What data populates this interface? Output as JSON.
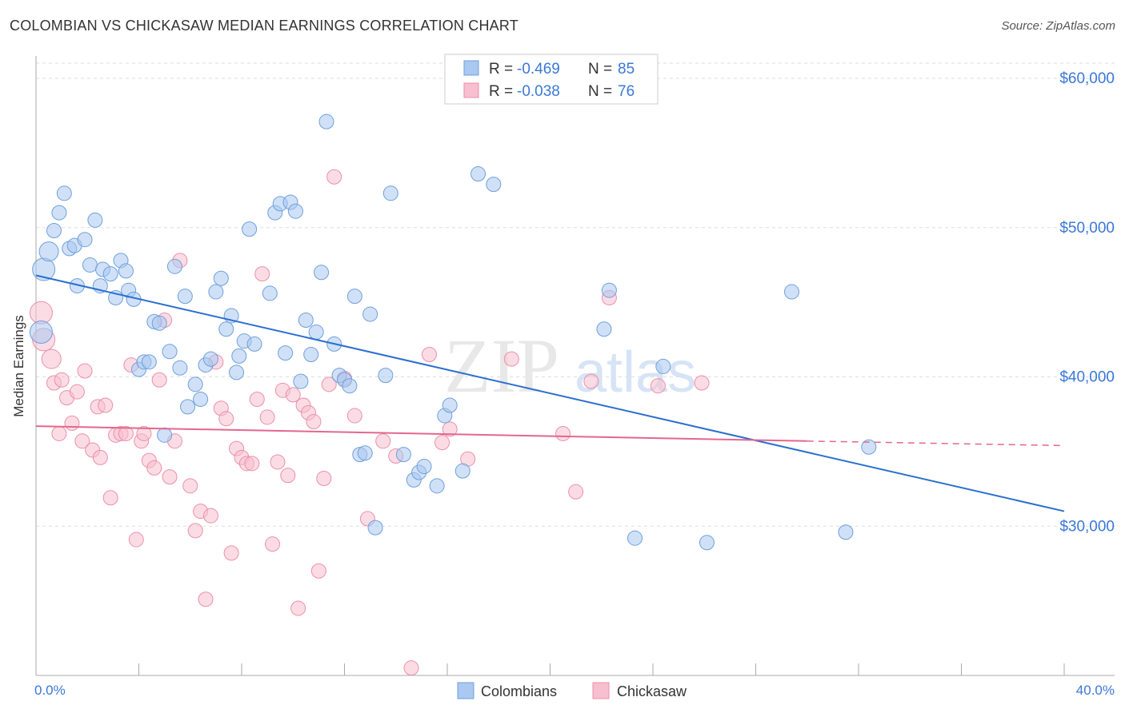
{
  "title": "COLOMBIAN VS CHICKASAW MEDIAN EARNINGS CORRELATION CHART",
  "source": "Source: ZipAtlas.com",
  "watermark": {
    "zip": "ZIP",
    "atlas": "atlas"
  },
  "legend_stats": [
    {
      "r_label": "R =",
      "r_value": "-0.469",
      "n_label": "N =",
      "n_value": "85"
    },
    {
      "r_label": "R =",
      "r_value": "-0.038",
      "n_label": "N =",
      "n_value": "76"
    }
  ],
  "colors": {
    "blue_fill": "#aac8f0",
    "blue_stroke": "#6f9fdc",
    "blue_line": "#2a6fd0",
    "pink_fill": "#f7bfd0",
    "pink_stroke": "#ec8fab",
    "pink_line": "#e4668f",
    "value_text": "#3a78d6",
    "grid": "#dddddd",
    "axis": "#aaaaaa"
  },
  "chart_data": {
    "type": "scatter",
    "title": "COLOMBIAN VS CHICKASAW MEDIAN EARNINGS CORRELATION CHART",
    "xlabel": "",
    "ylabel": "Median Earnings",
    "xlim": [
      0,
      40
    ],
    "ylim": [
      20000,
      61500
    ],
    "x_tick_labels": [
      "0.0%",
      "40.0%"
    ],
    "y_ticks": [
      30000,
      40000,
      50000,
      60000
    ],
    "y_tick_labels": [
      "$30,000",
      "$40,000",
      "$50,000",
      "$60,000"
    ],
    "grid": true,
    "legend_position": "bottom-center",
    "series": [
      {
        "name": "Colombians",
        "r": -0.469,
        "n": 85,
        "trend": {
          "x0": 0,
          "y0": 46800,
          "x1": 40,
          "y1": 31000
        },
        "points": [
          [
            0.2,
            43000
          ],
          [
            0.3,
            47200
          ],
          [
            0.5,
            48400
          ],
          [
            0.7,
            49800
          ],
          [
            0.9,
            51000
          ],
          [
            1.1,
            52300
          ],
          [
            1.3,
            48600
          ],
          [
            1.5,
            48800
          ],
          [
            1.6,
            46100
          ],
          [
            1.9,
            49200
          ],
          [
            2.1,
            47500
          ],
          [
            2.3,
            50500
          ],
          [
            2.5,
            46100
          ],
          [
            2.6,
            47200
          ],
          [
            2.9,
            46900
          ],
          [
            3.1,
            45300
          ],
          [
            3.3,
            47800
          ],
          [
            3.5,
            47100
          ],
          [
            3.6,
            45800
          ],
          [
            3.8,
            45200
          ],
          [
            4.0,
            40500
          ],
          [
            4.2,
            41000
          ],
          [
            4.4,
            41000
          ],
          [
            4.6,
            43700
          ],
          [
            4.8,
            43600
          ],
          [
            5.0,
            36100
          ],
          [
            5.2,
            41700
          ],
          [
            5.4,
            47400
          ],
          [
            5.6,
            40600
          ],
          [
            5.8,
            45400
          ],
          [
            5.9,
            38000
          ],
          [
            6.2,
            39500
          ],
          [
            6.4,
            38500
          ],
          [
            6.6,
            40800
          ],
          [
            6.8,
            41200
          ],
          [
            7.0,
            45700
          ],
          [
            7.2,
            46600
          ],
          [
            7.4,
            43200
          ],
          [
            7.6,
            44100
          ],
          [
            7.8,
            40300
          ],
          [
            7.9,
            41400
          ],
          [
            8.1,
            42400
          ],
          [
            8.3,
            49900
          ],
          [
            8.5,
            42200
          ],
          [
            9.1,
            45600
          ],
          [
            9.3,
            51000
          ],
          [
            9.5,
            51600
          ],
          [
            9.7,
            41600
          ],
          [
            9.9,
            51700
          ],
          [
            10.1,
            51100
          ],
          [
            10.3,
            39700
          ],
          [
            10.5,
            43800
          ],
          [
            10.7,
            41500
          ],
          [
            10.9,
            43000
          ],
          [
            11.1,
            47000
          ],
          [
            11.3,
            57100
          ],
          [
            11.6,
            42200
          ],
          [
            11.8,
            40100
          ],
          [
            12.0,
            39800
          ],
          [
            12.2,
            39400
          ],
          [
            12.4,
            45400
          ],
          [
            12.6,
            34800
          ],
          [
            12.8,
            34900
          ],
          [
            13.0,
            44200
          ],
          [
            13.2,
            29900
          ],
          [
            13.8,
            52300
          ],
          [
            14.3,
            34800
          ],
          [
            14.7,
            33100
          ],
          [
            14.9,
            33600
          ],
          [
            15.1,
            34000
          ],
          [
            15.6,
            32700
          ],
          [
            15.9,
            37400
          ],
          [
            16.1,
            38100
          ],
          [
            16.6,
            33700
          ],
          [
            17.2,
            53600
          ],
          [
            17.8,
            52900
          ],
          [
            22.1,
            43200
          ],
          [
            22.3,
            45800
          ],
          [
            23.3,
            29200
          ],
          [
            24.4,
            40700
          ],
          [
            26.1,
            28900
          ],
          [
            29.4,
            45700
          ],
          [
            31.5,
            29600
          ],
          [
            32.4,
            35300
          ],
          [
            13.6,
            40100
          ]
        ]
      },
      {
        "name": "Chickasaw",
        "r": -0.038,
        "n": 76,
        "trend": {
          "x0": 0,
          "y0": 36700,
          "x1": 30,
          "y1": 35700,
          "dash_x1": 40,
          "dash_y1": 35400
        },
        "points": [
          [
            0.2,
            44300
          ],
          [
            0.3,
            42500
          ],
          [
            0.6,
            41200
          ],
          [
            0.7,
            39600
          ],
          [
            0.9,
            36200
          ],
          [
            1.0,
            39800
          ],
          [
            1.2,
            38600
          ],
          [
            1.4,
            36900
          ],
          [
            1.6,
            39000
          ],
          [
            1.8,
            35700
          ],
          [
            1.9,
            40400
          ],
          [
            2.2,
            35100
          ],
          [
            2.4,
            38000
          ],
          [
            2.5,
            34600
          ],
          [
            2.7,
            38100
          ],
          [
            2.9,
            31900
          ],
          [
            3.1,
            36100
          ],
          [
            3.3,
            36200
          ],
          [
            3.5,
            36200
          ],
          [
            3.7,
            40800
          ],
          [
            3.9,
            29100
          ],
          [
            4.1,
            35700
          ],
          [
            4.2,
            36200
          ],
          [
            4.4,
            34400
          ],
          [
            4.6,
            33900
          ],
          [
            4.8,
            39800
          ],
          [
            5.0,
            43800
          ],
          [
            5.2,
            33300
          ],
          [
            5.4,
            35700
          ],
          [
            5.6,
            47800
          ],
          [
            6.0,
            32700
          ],
          [
            6.2,
            29700
          ],
          [
            6.4,
            31000
          ],
          [
            6.6,
            25100
          ],
          [
            6.8,
            30700
          ],
          [
            7.0,
            41000
          ],
          [
            7.2,
            37900
          ],
          [
            7.4,
            37200
          ],
          [
            7.6,
            28200
          ],
          [
            7.8,
            35200
          ],
          [
            8.0,
            34600
          ],
          [
            8.2,
            34200
          ],
          [
            8.4,
            34200
          ],
          [
            8.6,
            38500
          ],
          [
            8.8,
            46900
          ],
          [
            9.0,
            37300
          ],
          [
            9.2,
            28800
          ],
          [
            9.4,
            34300
          ],
          [
            9.6,
            39100
          ],
          [
            9.8,
            33400
          ],
          [
            10.0,
            38800
          ],
          [
            10.2,
            24500
          ],
          [
            10.4,
            38100
          ],
          [
            10.6,
            37600
          ],
          [
            10.8,
            37000
          ],
          [
            11.0,
            27000
          ],
          [
            11.2,
            33200
          ],
          [
            11.4,
            39500
          ],
          [
            11.6,
            53400
          ],
          [
            12.0,
            39900
          ],
          [
            12.4,
            37400
          ],
          [
            12.9,
            30500
          ],
          [
            13.5,
            35700
          ],
          [
            14.0,
            34700
          ],
          [
            14.6,
            20500
          ],
          [
            15.3,
            41500
          ],
          [
            15.8,
            35600
          ],
          [
            16.1,
            36500
          ],
          [
            16.8,
            34500
          ],
          [
            18.5,
            41200
          ],
          [
            20.5,
            36200
          ],
          [
            21.0,
            32300
          ],
          [
            21.6,
            39700
          ],
          [
            22.3,
            45300
          ],
          [
            24.2,
            39400
          ],
          [
            25.9,
            39600
          ]
        ]
      }
    ]
  }
}
